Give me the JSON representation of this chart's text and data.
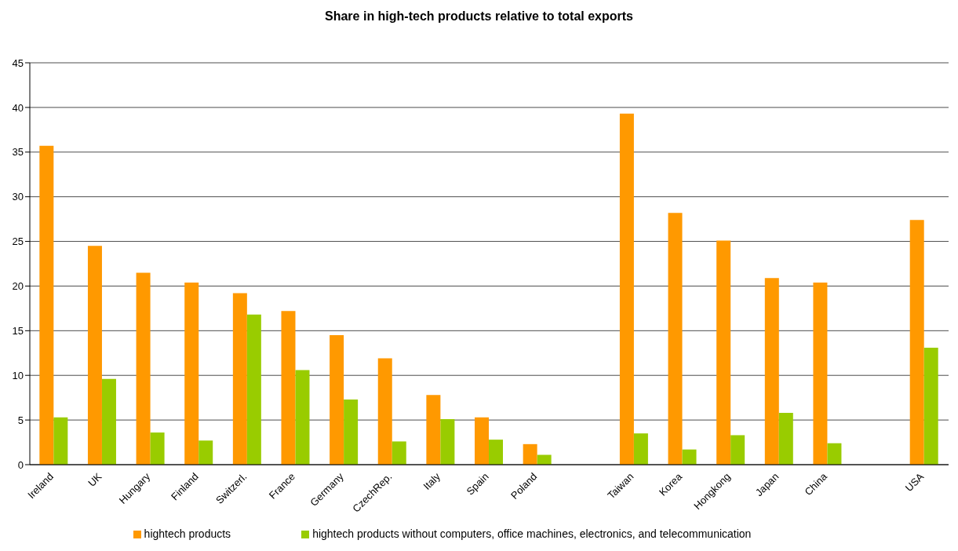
{
  "chart_data": {
    "type": "bar",
    "title": "Share in high-tech products relative to total exports",
    "categories": [
      "Ireland",
      "UK",
      "Hungary",
      "Finland",
      "Switzerl.",
      "France",
      "Germany",
      "CzechRep.",
      "Italy",
      "Spain",
      "Poland",
      null,
      "Taiwan",
      "Korea",
      "Hongkong",
      "Japan",
      "China",
      null,
      "USA"
    ],
    "series": [
      {
        "name": "hightech products",
        "color": "#ff9900",
        "values": [
          35.7,
          24.5,
          21.5,
          20.4,
          19.2,
          17.2,
          14.5,
          11.9,
          7.8,
          5.3,
          2.3,
          null,
          39.3,
          28.2,
          25.1,
          20.9,
          20.4,
          null,
          27.4
        ]
      },
      {
        "name": "hightech products without computers, office machines, electronics, and telecommunication",
        "color": "#99cc00",
        "values": [
          5.3,
          9.6,
          3.6,
          2.7,
          16.8,
          10.6,
          7.3,
          2.6,
          5.1,
          2.8,
          1.1,
          null,
          3.5,
          1.7,
          3.3,
          5.8,
          2.4,
          null,
          13.1
        ]
      }
    ],
    "ylim": [
      0,
      45
    ],
    "yticks": [
      0,
      5,
      10,
      15,
      20,
      25,
      30,
      35,
      40,
      45
    ],
    "grid": "y",
    "legend": "bottom"
  }
}
